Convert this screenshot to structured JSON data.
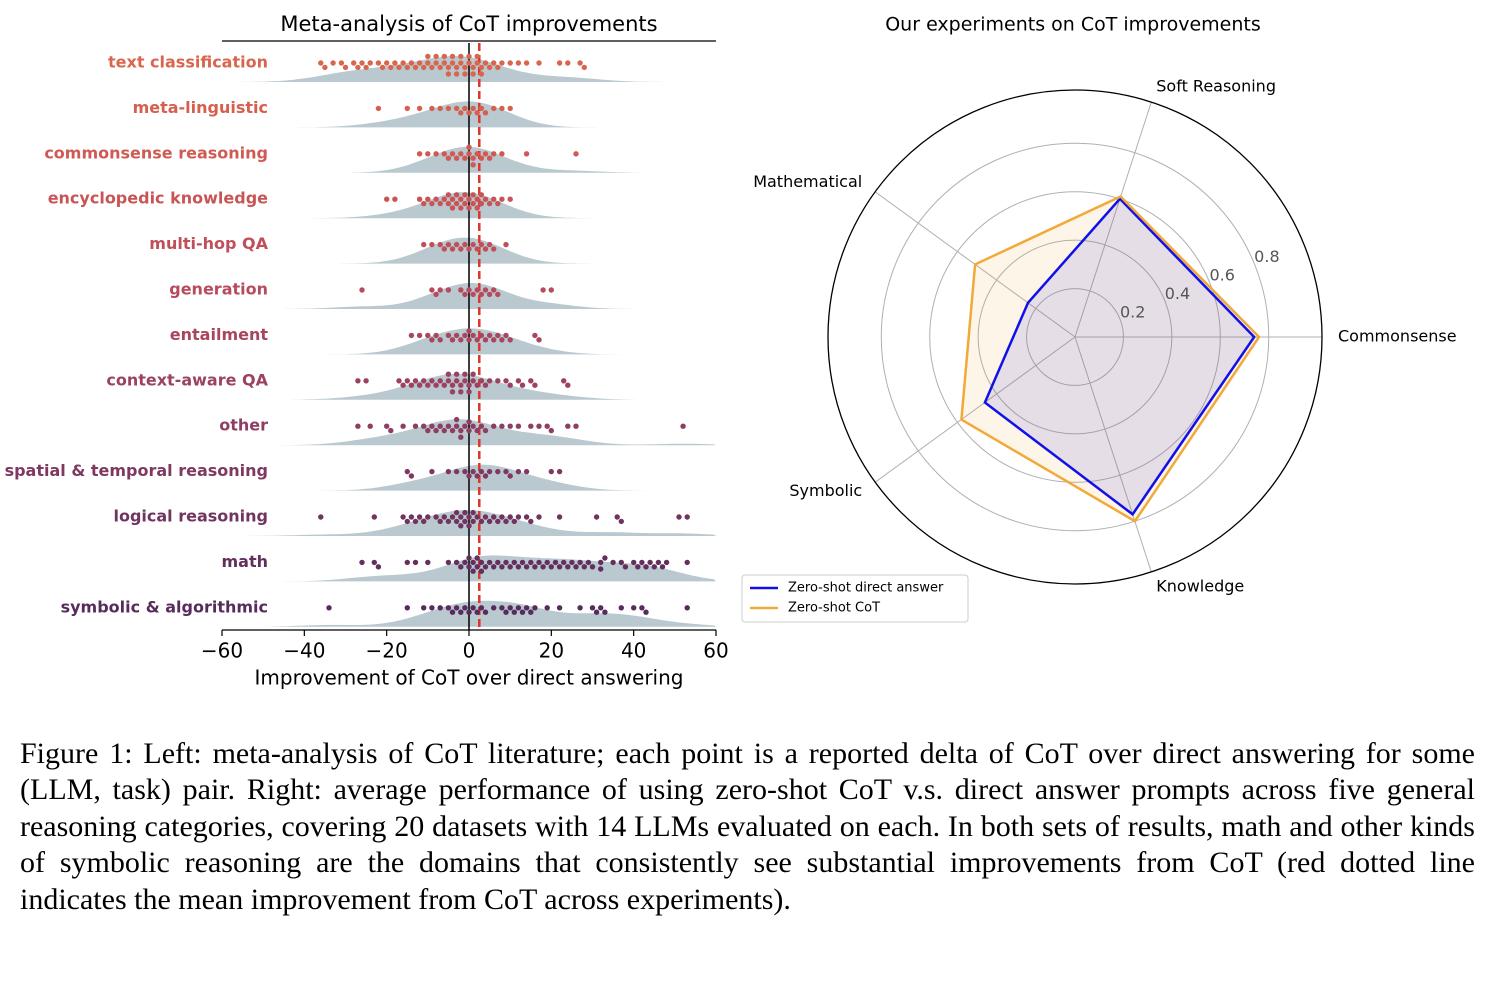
{
  "chart_data": [
    {
      "type": "swarm",
      "title": "Meta-analysis of CoT improvements",
      "xlabel": "Improvement of CoT over direct answering",
      "xlim": [
        -60,
        60
      ],
      "xticks": [
        {
          "value": -60,
          "label": "−60"
        },
        {
          "value": -40,
          "label": "−40"
        },
        {
          "value": -20,
          "label": "−20"
        },
        0,
        20,
        40,
        60
      ],
      "reference_line": {
        "value": 2.5,
        "color": "#e0352b"
      },
      "density_color": "#b9c9cf",
      "series": [
        {
          "name": "text classification",
          "color": "#d8664e",
          "values": [
            -36,
            -35,
            -33,
            -31,
            -30,
            -28,
            -27,
            -26,
            -25,
            -24,
            -22,
            -21,
            -20,
            -19,
            -18,
            -17,
            -16,
            -15,
            -14,
            -13,
            -12,
            -11,
            -10,
            -10,
            -9,
            -8,
            -8,
            -7,
            -6,
            -6,
            -5,
            -5,
            -4,
            -4,
            -3,
            -3,
            -2,
            -2,
            -1,
            -1,
            0,
            0,
            1,
            1,
            2,
            2,
            3,
            3,
            4,
            5,
            6,
            7,
            8,
            10,
            12,
            14,
            17,
            22,
            24,
            27,
            28
          ]
        },
        {
          "name": "meta-linguistic",
          "color": "#d5604f",
          "values": [
            -22,
            -15,
            -12,
            -9,
            -7,
            -5,
            -3,
            -2,
            -1,
            0,
            1,
            2,
            3,
            4,
            6,
            8,
            10
          ]
        },
        {
          "name": "commonsense reasoning",
          "color": "#d05a53",
          "values": [
            -12,
            -10,
            -8,
            -6,
            -5,
            -4,
            -3,
            -2,
            -1,
            0,
            0,
            1,
            1,
            2,
            3,
            4,
            5,
            6,
            8,
            14,
            26
          ]
        },
        {
          "name": "encyclopedic knowledge",
          "color": "#c95456",
          "values": [
            -20,
            -18,
            -12,
            -11,
            -10,
            -9,
            -8,
            -7,
            -6,
            -5,
            -5,
            -4,
            -4,
            -3,
            -3,
            -2,
            -2,
            -1,
            -1,
            0,
            0,
            1,
            1,
            2,
            2,
            3,
            3,
            4,
            5,
            6,
            7,
            8,
            10
          ]
        },
        {
          "name": "multi-hop QA",
          "color": "#c04f5a",
          "values": [
            -11,
            -9,
            -7,
            -6,
            -5,
            -4,
            -3,
            -2,
            -1,
            0,
            1,
            2,
            3,
            4,
            5,
            6,
            9
          ]
        },
        {
          "name": "generation",
          "color": "#b64b5d",
          "values": [
            -26,
            -9,
            -8,
            -7,
            -5,
            -2,
            -1,
            0,
            1,
            2,
            3,
            4,
            5,
            6,
            7,
            18,
            20
          ]
        },
        {
          "name": "entailment",
          "color": "#a9465f",
          "values": [
            -14,
            -12,
            -10,
            -9,
            -8,
            -7,
            -5,
            -4,
            -3,
            -2,
            -1,
            0,
            0,
            1,
            2,
            3,
            4,
            5,
            6,
            7,
            8,
            9,
            10,
            16,
            17
          ]
        },
        {
          "name": "context-aware QA",
          "color": "#9b4261",
          "values": [
            -27,
            -25,
            -17,
            -16,
            -15,
            -14,
            -13,
            -12,
            -11,
            -10,
            -9,
            -8,
            -7,
            -6,
            -5,
            -5,
            -4,
            -4,
            -3,
            -3,
            -2,
            -2,
            -1,
            -1,
            0,
            0,
            1,
            1,
            2,
            3,
            4,
            5,
            7,
            9,
            10,
            12,
            13,
            15,
            16,
            23,
            24
          ]
        },
        {
          "name": "other",
          "color": "#8d3e62",
          "values": [
            -27,
            -24,
            -20,
            -19,
            -16,
            -13,
            -11,
            -10,
            -9,
            -8,
            -7,
            -6,
            -5,
            -4,
            -3,
            -3,
            -2,
            -2,
            -1,
            0,
            0,
            1,
            2,
            3,
            4,
            6,
            8,
            10,
            12,
            15,
            17,
            19,
            20,
            24,
            26,
            52
          ]
        },
        {
          "name": "spatial & temporal reasoning",
          "color": "#7f3961",
          "values": [
            -15,
            -14,
            -9,
            -5,
            -3,
            -1,
            0,
            1,
            2,
            3,
            4,
            5,
            7,
            9,
            10,
            12,
            14,
            20,
            22
          ]
        },
        {
          "name": "logical reasoning",
          "color": "#71345f",
          "values": [
            -36,
            -23,
            -16,
            -15,
            -14,
            -13,
            -12,
            -11,
            -10,
            -8,
            -7,
            -6,
            -5,
            -4,
            -3,
            -3,
            -2,
            -2,
            -1,
            -1,
            0,
            0,
            1,
            1,
            2,
            3,
            4,
            5,
            6,
            7,
            8,
            9,
            10,
            11,
            12,
            14,
            15,
            17,
            22,
            31,
            36,
            37,
            51,
            53
          ]
        },
        {
          "name": "math",
          "color": "#63305e",
          "values": [
            -26,
            -23,
            -22,
            -15,
            -13,
            -10,
            -5,
            -3,
            -2,
            -1,
            0,
            0,
            1,
            1,
            2,
            2,
            3,
            3,
            4,
            5,
            6,
            7,
            8,
            9,
            10,
            11,
            12,
            13,
            14,
            15,
            16,
            17,
            18,
            19,
            20,
            21,
            22,
            23,
            24,
            25,
            26,
            27,
            28,
            29,
            30,
            32,
            32,
            33,
            35,
            37,
            38,
            40,
            41,
            42,
            43,
            44,
            45,
            46,
            47,
            48,
            53
          ]
        },
        {
          "name": "symbolic & algorithmic",
          "color": "#572b5c",
          "values": [
            -34,
            -15,
            -11,
            -9,
            -7,
            -5,
            -4,
            -3,
            -2,
            -1,
            0,
            1,
            2,
            3,
            4,
            6,
            8,
            9,
            10,
            11,
            12,
            13,
            14,
            15,
            16,
            19,
            22,
            27,
            30,
            31,
            32,
            33,
            37,
            40,
            42,
            43,
            53
          ]
        }
      ]
    },
    {
      "type": "radar",
      "title": "Our experiments on CoT improvements",
      "categories": [
        "Commonsense",
        "Soft Reasoning",
        "Mathematical",
        "Symbolic",
        "Knowledge"
      ],
      "rlim": [
        0,
        1.02
      ],
      "rticks": [
        0.2,
        0.4,
        0.6,
        0.8
      ],
      "legend": "lower left",
      "series": [
        {
          "name": "Zero-shot direct answer",
          "color": "#1010e8",
          "values": [
            0.74,
            0.6,
            0.24,
            0.46,
            0.77
          ]
        },
        {
          "name": "Zero-shot CoT",
          "color": "#f2a93b",
          "values": [
            0.76,
            0.61,
            0.51,
            0.58,
            0.8
          ]
        }
      ]
    }
  ],
  "caption": "Figure 1: Left: meta-analysis of CoT literature; each point is a reported delta of CoT over direct answering for some (LLM, task) pair. Right: average performance of using zero-shot CoT v.s. direct answer prompts across five general reasoning categories, covering 20 datasets with 14 LLMs evaluated on each. In both sets of results, math and other kinds of symbolic reasoning are the domains that consistently see substantial improvements from CoT (red dotted line indicates the mean improvement from CoT across experiments)."
}
